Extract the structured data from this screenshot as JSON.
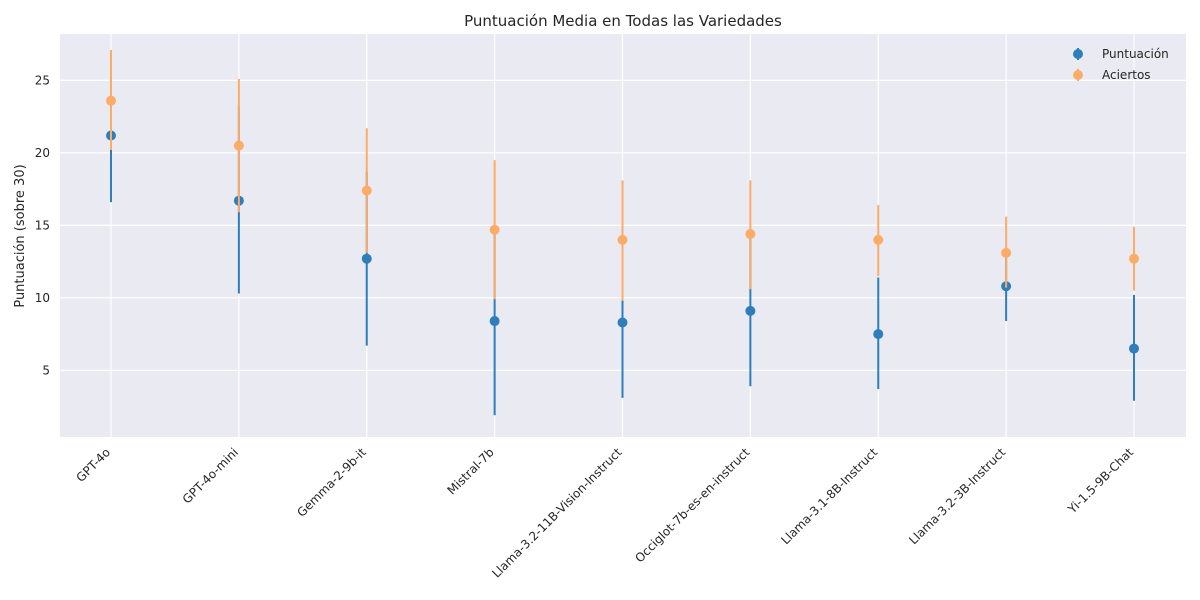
{
  "chart_data": {
    "type": "scatter",
    "title": "Puntuación Media en Todas las Variedades",
    "xlabel": "",
    "ylabel": "Puntuación (sobre 30)",
    "ylim": [
      0.4,
      28.2
    ],
    "yticks": [
      5,
      10,
      15,
      20,
      25
    ],
    "grid": true,
    "legend_position": "top-right",
    "categories": [
      "GPT-4o",
      "GPT-4o-mini",
      "Gemma-2-9b-it",
      "Mistral-7b",
      "Llama-3.2-11B-Vision-Instruct",
      "Occiglot-7b-es-en-instruct",
      "Llama-3.1-8B-Instruct",
      "Llama-3.2-3B-Instruct",
      "Yi-1.5-9B-Chat"
    ],
    "series": [
      {
        "name": "Puntuación",
        "color": "#2e7ebc",
        "values": [
          21.2,
          16.7,
          12.7,
          8.4,
          8.3,
          9.1,
          7.5,
          10.8,
          6.5
        ],
        "err_low": [
          16.6,
          10.3,
          6.7,
          1.9,
          3.1,
          3.9,
          3.7,
          8.4,
          2.9
        ],
        "err_high": [
          25.8,
          23.2,
          18.7,
          14.9,
          13.7,
          14.3,
          11.4,
          13.2,
          10.2
        ]
      },
      {
        "name": "Aciertos",
        "color": "#fdac68",
        "values": [
          23.6,
          20.5,
          17.4,
          14.7,
          14.0,
          14.4,
          14.0,
          13.1,
          12.7
        ],
        "err_low": [
          20.2,
          15.9,
          13.1,
          9.9,
          9.8,
          10.6,
          11.5,
          10.7,
          10.5
        ],
        "err_high": [
          27.1,
          25.1,
          21.7,
          19.5,
          18.1,
          18.1,
          16.4,
          15.6,
          14.9
        ]
      }
    ]
  }
}
